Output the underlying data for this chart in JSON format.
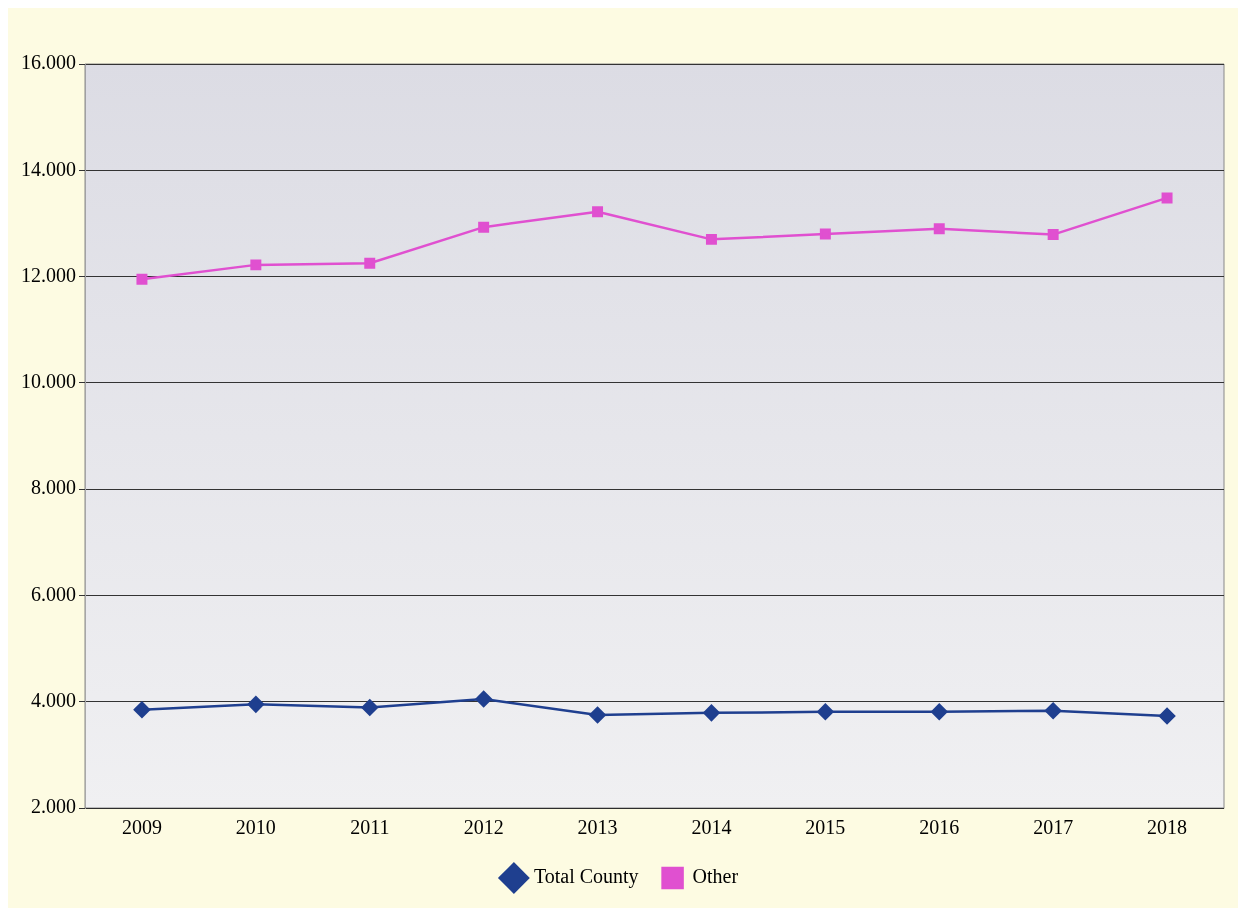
{
  "chart_data": {
    "type": "line",
    "categories": [
      "2009",
      "2010",
      "2011",
      "2012",
      "2013",
      "2014",
      "2015",
      "2016",
      "2017",
      "2018"
    ],
    "series": [
      {
        "name": "Total County",
        "color": "#1f3f8f",
        "marker": "diamond",
        "values": [
          3850,
          3950,
          3890,
          4050,
          3750,
          3790,
          3810,
          3810,
          3830,
          3730
        ]
      },
      {
        "name": "Other",
        "color": "#e050d0",
        "marker": "square",
        "values": [
          11950,
          12220,
          12250,
          12930,
          13220,
          12700,
          12800,
          12900,
          12790,
          13480
        ]
      }
    ],
    "ylim": [
      2000,
      16000
    ],
    "yticks": [
      {
        "value": 2000,
        "label": "2.000"
      },
      {
        "value": 4000,
        "label": "4.000"
      },
      {
        "value": 6000,
        "label": "6.000"
      },
      {
        "value": 8000,
        "label": "8.000"
      },
      {
        "value": 10000,
        "label": "10.000"
      },
      {
        "value": 12000,
        "label": "12.000"
      },
      {
        "value": 14000,
        "label": "14.000"
      },
      {
        "value": 16000,
        "label": "16.000"
      }
    ],
    "grid": "y",
    "legend": "bottom",
    "line_style": "solid"
  }
}
